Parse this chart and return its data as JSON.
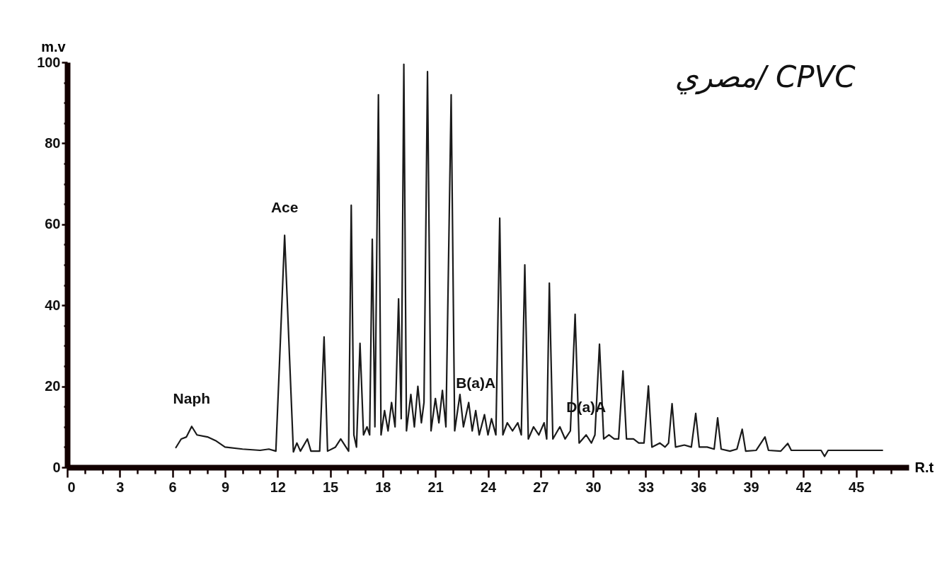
{
  "chart_data": {
    "type": "line",
    "title": "مصري/ CPVC",
    "xlabel": "R.t",
    "ylabel": "m.v",
    "xlim": [
      0,
      48
    ],
    "ylim": [
      0,
      100
    ],
    "xticks": [
      0,
      {
        "value": 1,
        "label": null
      },
      {
        "value": 2,
        "label": null
      },
      3,
      {
        "value": 4,
        "label": null
      },
      {
        "value": 5,
        "label": null
      },
      6,
      {
        "value": 7,
        "label": null
      },
      {
        "value": 8,
        "label": null
      },
      9,
      {
        "value": 10,
        "label": null
      },
      {
        "value": 11,
        "label": null
      },
      12,
      {
        "value": 13,
        "label": null
      },
      {
        "value": 14,
        "label": null
      },
      15,
      {
        "value": 16,
        "label": null
      },
      {
        "value": 17,
        "label": null
      },
      18,
      {
        "value": 19,
        "label": null
      },
      {
        "value": 20,
        "label": null
      },
      21,
      {
        "value": 22,
        "label": null
      },
      {
        "value": 23,
        "label": null
      },
      24,
      {
        "value": 25,
        "label": null
      },
      {
        "value": 26,
        "label": null
      },
      27,
      {
        "value": 28,
        "label": null
      },
      {
        "value": 29,
        "label": null
      },
      30,
      {
        "value": 31,
        "label": null
      },
      {
        "value": 32,
        "label": null
      },
      33,
      {
        "value": 34,
        "label": null
      },
      {
        "value": 35,
        "label": null
      },
      36,
      {
        "value": 37,
        "label": null
      },
      {
        "value": 38,
        "label": null
      },
      39,
      {
        "value": 40,
        "label": null
      },
      {
        "value": 41,
        "label": null
      },
      42,
      {
        "value": 43,
        "label": null
      },
      {
        "value": 44,
        "label": null
      },
      45,
      {
        "value": 46,
        "label": null
      },
      {
        "value": 47,
        "label": null
      }
    ],
    "yticks": [
      0,
      {
        "value": 5,
        "label": null
      },
      {
        "value": 10,
        "label": null
      },
      {
        "value": 15,
        "label": null
      },
      20,
      {
        "value": 25,
        "label": null
      },
      {
        "value": 30,
        "label": null
      },
      {
        "value": 35,
        "label": null
      },
      40,
      {
        "value": 45,
        "label": null
      },
      {
        "value": 50,
        "label": null
      },
      {
        "value": 55,
        "label": null
      },
      60,
      {
        "value": 65,
        "label": null
      },
      {
        "value": 70,
        "label": null
      },
      {
        "value": 75,
        "label": null
      },
      80,
      {
        "value": 85,
        "label": null
      },
      {
        "value": 90,
        "label": null
      },
      {
        "value": 95,
        "label": null
      },
      100
    ],
    "grid": false,
    "marker": "none",
    "line_style": "solid",
    "annotations": [
      {
        "text": "Naph",
        "x": 7.1,
        "y": 10.1
      },
      {
        "text": "Ace",
        "x": 12.4,
        "y": 57.3
      },
      {
        "text": "B(a)A",
        "x": 23.3,
        "y": 14
      },
      {
        "text": "D(a)A",
        "x": 29.6,
        "y": 8
      }
    ],
    "series": [
      {
        "color": "#1a1a1a",
        "x": [
          6.2,
          6.5,
          6.8,
          7.1,
          7.4,
          8,
          8.5,
          9,
          10,
          11,
          11.5,
          11.9,
          12.1,
          12.4,
          12.7,
          12.9,
          13.1,
          13.3,
          13.7,
          13.9,
          14.4,
          14.65,
          14.85,
          15.3,
          15.6,
          15.9,
          16.05,
          16.2,
          16.35,
          16.5,
          16.7,
          16.9,
          17.1,
          17.25,
          17.4,
          17.55,
          17.75,
          17.9,
          18.1,
          18.3,
          18.5,
          18.7,
          18.9,
          19.05,
          19.2,
          19.35,
          19.6,
          19.8,
          20,
          20.2,
          20.35,
          20.55,
          20.75,
          21,
          21.2,
          21.4,
          21.6,
          21.9,
          22.1,
          22.4,
          22.6,
          22.9,
          23.1,
          23.3,
          23.5,
          23.8,
          24,
          24.2,
          24.45,
          24.67,
          24.85,
          25.1,
          25.4,
          25.7,
          25.9,
          26.1,
          26.3,
          26.6,
          26.9,
          27.2,
          27.35,
          27.5,
          27.7,
          28.1,
          28.4,
          28.7,
          28.97,
          29.2,
          29.6,
          29.9,
          30.1,
          30.36,
          30.6,
          30.9,
          31.2,
          31.45,
          31.7,
          31.9,
          32.3,
          32.6,
          32.9,
          33.15,
          33.35,
          33.8,
          34.1,
          34.3,
          34.5,
          34.7,
          35.2,
          35.6,
          35.85,
          36.05,
          36.5,
          36.9,
          37.1,
          37.3,
          37.8,
          38.2,
          38.5,
          38.7,
          39.3,
          39.8,
          40,
          40.7,
          41.1,
          41.3,
          43,
          43.2,
          43.4,
          46.5
        ],
        "values": [
          4.9,
          7,
          7.5,
          10.1,
          8,
          7.5,
          6.5,
          5,
          4.5,
          4.2,
          4.5,
          4,
          25,
          57.3,
          25,
          3.8,
          6,
          4,
          7,
          4,
          4,
          32.2,
          4,
          5,
          7,
          5,
          4,
          64.7,
          8,
          5,
          30.6,
          8,
          10,
          8,
          56.3,
          10,
          92,
          8,
          14,
          9,
          16,
          10,
          41.6,
          12,
          99.5,
          9,
          18,
          10,
          20,
          11,
          16,
          97.7,
          9,
          17,
          11,
          19,
          10,
          92,
          9,
          18,
          10,
          16,
          9,
          14,
          8,
          13,
          8,
          12,
          8,
          61.5,
          8,
          11,
          9,
          11,
          8,
          50,
          7,
          10,
          8,
          11,
          7,
          45.5,
          7,
          10,
          7,
          9,
          37.8,
          6,
          8,
          6,
          8,
          30.4,
          7,
          8,
          7,
          7,
          23.8,
          7,
          7,
          6,
          6,
          20.1,
          5,
          6,
          5,
          6,
          15.7,
          5,
          5.5,
          5,
          13.3,
          5,
          5,
          4.5,
          12.2,
          4.5,
          4,
          4.5,
          9.4,
          4,
          4.2,
          7.5,
          4.2,
          4,
          5.9,
          4.2,
          4.2,
          2.7,
          4.2,
          4.2
        ]
      }
    ]
  }
}
